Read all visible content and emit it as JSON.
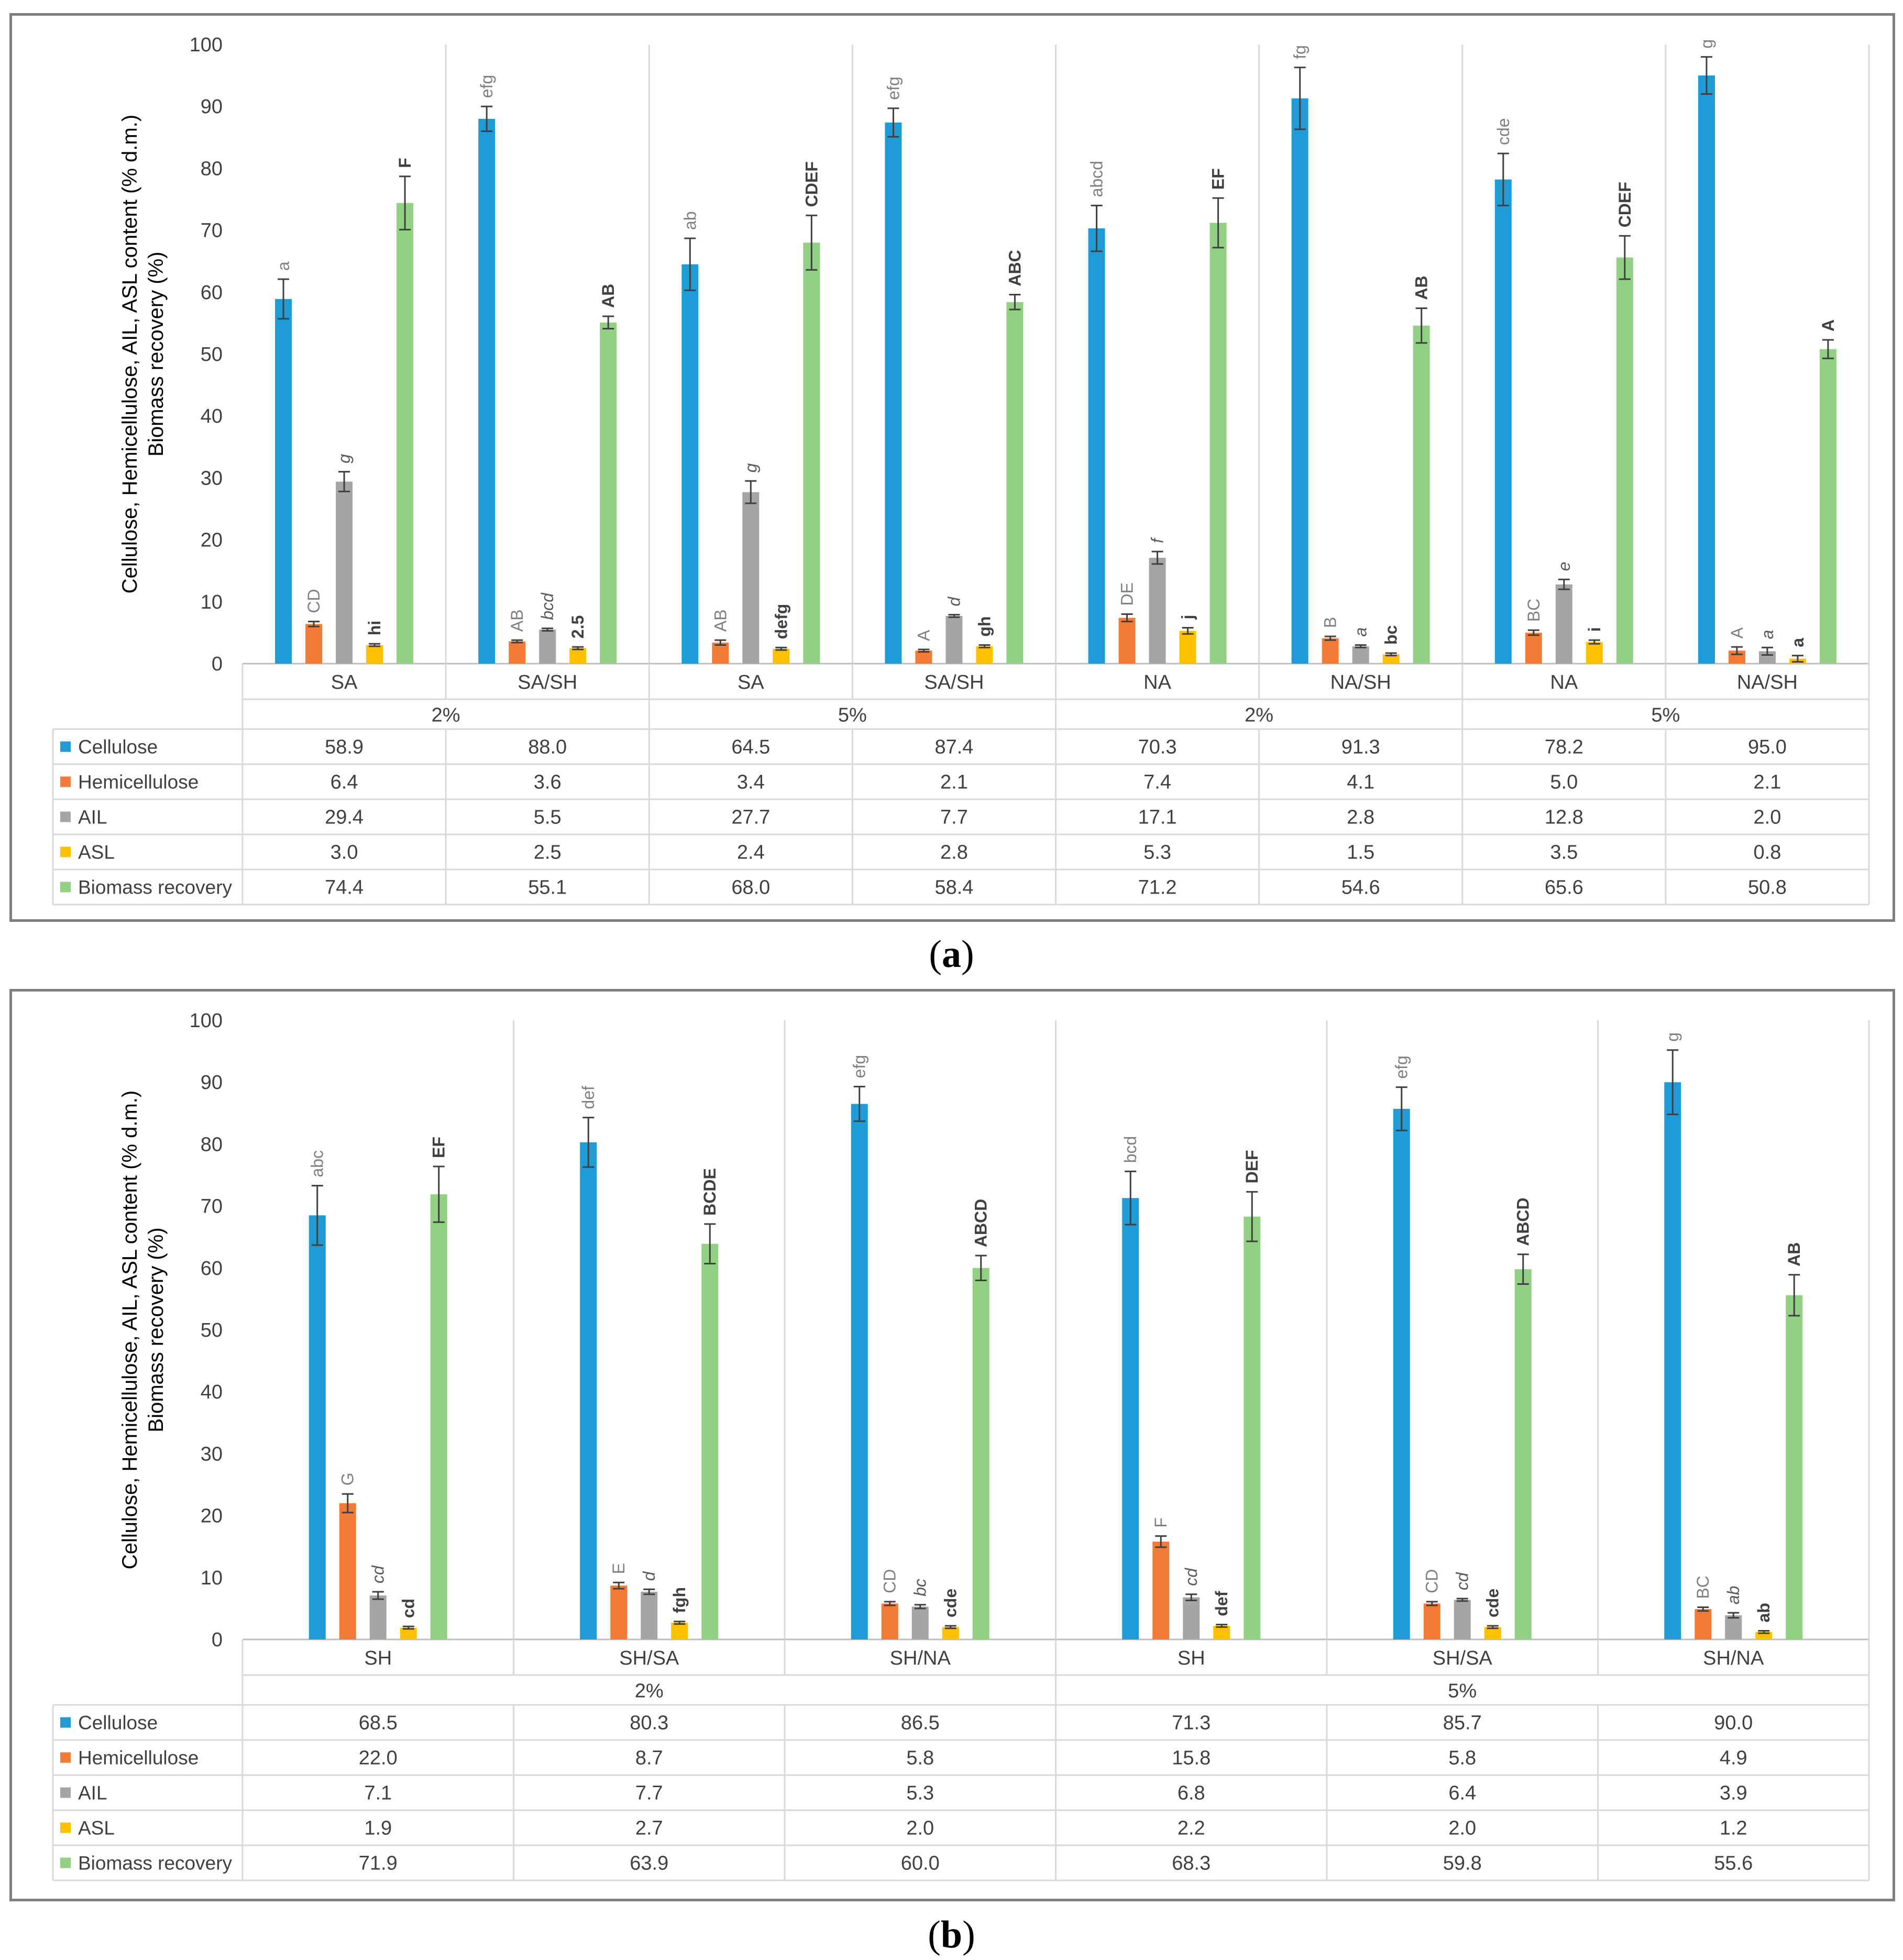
{
  "legend_colors": {
    "Cellulose": "#1f9bd7",
    "Hemicellulose": "#f47b36",
    "AIL": "#a5a5a5",
    "ASL": "#ffc000",
    "Biomass recovery": "#92d083"
  },
  "captions": {
    "a": "a",
    "b": "b"
  },
  "chart_data": [
    {
      "type": "bar",
      "ylabel": "Cellulose, Hemicellulose, AIL, ASL content (% d.m.)",
      "ylabel2": "Biomass recovery (%)",
      "ylim": [
        0,
        100
      ],
      "yticks": [
        0,
        10,
        20,
        30,
        40,
        50,
        60,
        70,
        80,
        90,
        100
      ],
      "categories": [
        "SA",
        "SA/SH",
        "SA",
        "SA/SH",
        "NA",
        "NA/SH",
        "NA",
        "NA/SH"
      ],
      "groups": [
        {
          "label": "2%",
          "span": 2
        },
        {
          "label": "5%",
          "span": 2
        },
        {
          "label": "2%",
          "span": 2
        },
        {
          "label": "5%",
          "span": 2
        }
      ],
      "series": [
        {
          "name": "Cellulose",
          "values": [
            58.9,
            88.0,
            64.5,
            87.4,
            70.3,
            91.3,
            78.2,
            95.0
          ],
          "errors": [
            3.2,
            2.0,
            4.2,
            2.3,
            3.7,
            5.0,
            4.2,
            3.0
          ],
          "letters": [
            "a",
            "efg",
            "ab",
            "efg",
            "abcd",
            "fg",
            "cde",
            "g"
          ]
        },
        {
          "name": "Hemicellulose",
          "values": [
            6.4,
            3.6,
            3.4,
            2.1,
            7.4,
            4.1,
            5.0,
            2.1
          ],
          "errors": [
            0.4,
            0.2,
            0.4,
            0.2,
            0.6,
            0.3,
            0.4,
            0.6
          ],
          "letters": [
            "CD",
            "AB",
            "AB",
            "A",
            "DE",
            "B",
            "BC",
            "A"
          ]
        },
        {
          "name": "AIL",
          "values": [
            29.4,
            5.5,
            27.7,
            7.7,
            17.1,
            2.8,
            12.8,
            2.0
          ],
          "errors": [
            1.6,
            0.2,
            1.8,
            0.2,
            1.0,
            0.2,
            0.8,
            0.6
          ],
          "letters": [
            "g",
            "bcd",
            "g",
            "d",
            "f",
            "a",
            "e",
            "a"
          ]
        },
        {
          "name": "ASL",
          "values": [
            3.0,
            2.5,
            2.4,
            2.8,
            5.3,
            1.5,
            3.5,
            0.8
          ],
          "errors": [
            0.2,
            0.2,
            0.2,
            0.2,
            0.5,
            0.2,
            0.3,
            0.5
          ],
          "letters": [
            "hi",
            "2.5",
            "defg",
            "gh",
            "j",
            "bc",
            "i",
            "a"
          ]
        },
        {
          "name": "Biomass recovery",
          "values": [
            74.4,
            55.1,
            68.0,
            58.4,
            71.2,
            54.6,
            65.6,
            50.8
          ],
          "errors": [
            4.3,
            1.0,
            4.4,
            1.2,
            4.0,
            2.8,
            3.5,
            1.5
          ],
          "letters": [
            "F",
            "AB",
            "CDEF",
            "ABC",
            "EF",
            "AB",
            "CDEF",
            "A"
          ]
        }
      ]
    },
    {
      "type": "bar",
      "ylabel": "Cellulose, Hemicellulose, AIL, ASL content (% d.m.)",
      "ylabel2": "Biomass recovery (%)",
      "ylim": [
        0,
        100
      ],
      "yticks": [
        0,
        10,
        20,
        30,
        40,
        50,
        60,
        70,
        80,
        90,
        100
      ],
      "categories": [
        "SH",
        "SH/SA",
        "SH/NA",
        "SH",
        "SH/SA",
        "SH/NA"
      ],
      "groups": [
        {
          "label": "2%",
          "span": 3
        },
        {
          "label": "5%",
          "span": 3
        }
      ],
      "series": [
        {
          "name": "Cellulose",
          "values": [
            68.5,
            80.3,
            86.5,
            71.3,
            85.7,
            90.0
          ],
          "errors": [
            4.8,
            4.0,
            2.8,
            4.3,
            3.5,
            5.2
          ],
          "letters": [
            "abc",
            "def",
            "efg",
            "bcd",
            "efg",
            "g"
          ]
        },
        {
          "name": "Hemicellulose",
          "values": [
            22.0,
            8.7,
            5.8,
            15.8,
            5.8,
            4.9
          ],
          "errors": [
            1.5,
            0.5,
            0.3,
            0.9,
            0.3,
            0.3
          ],
          "letters": [
            "G",
            "E",
            "CD",
            "F",
            "CD",
            "BC"
          ]
        },
        {
          "name": "AIL",
          "values": [
            7.1,
            7.7,
            5.3,
            6.8,
            6.4,
            3.9
          ],
          "errors": [
            0.6,
            0.4,
            0.3,
            0.5,
            0.2,
            0.4
          ],
          "letters": [
            "cd",
            "d",
            "bc",
            "cd",
            "cd",
            "ab"
          ]
        },
        {
          "name": "ASL",
          "values": [
            1.9,
            2.7,
            2.0,
            2.2,
            2.0,
            1.2
          ],
          "errors": [
            0.2,
            0.2,
            0.2,
            0.2,
            0.2,
            0.2
          ],
          "letters": [
            "cd",
            "fgh",
            "cde",
            "def",
            "cde",
            "ab"
          ]
        },
        {
          "name": "Biomass recovery",
          "values": [
            71.9,
            63.9,
            60.0,
            68.3,
            59.8,
            55.6
          ],
          "errors": [
            4.5,
            3.2,
            2.0,
            4.0,
            2.4,
            3.3
          ],
          "letters": [
            "EF",
            "BCDE",
            "ABCD",
            "DEF",
            "ABCD",
            "AB"
          ]
        }
      ]
    }
  ]
}
